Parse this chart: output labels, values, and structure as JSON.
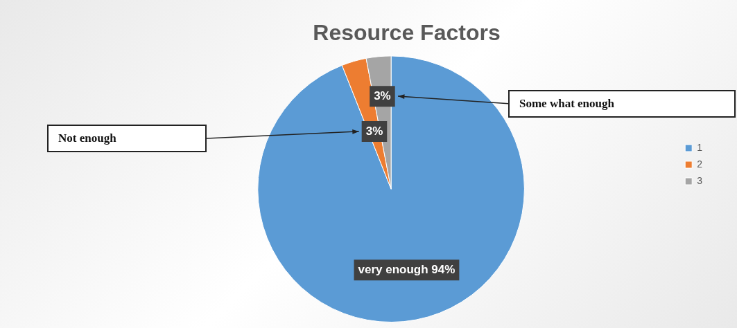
{
  "chart_data": {
    "type": "pie",
    "title": "Resource Factors",
    "categories": [
      "1",
      "2",
      "3"
    ],
    "values": [
      94,
      3,
      3
    ],
    "colors": [
      "#5b9bd5",
      "#ed7d31",
      "#a5a5a5"
    ],
    "value_labels": [
      "very enough 94%",
      "3%",
      "3%"
    ],
    "annotations": [
      "Not enough",
      "Some what enough"
    ],
    "legend": "right"
  }
}
